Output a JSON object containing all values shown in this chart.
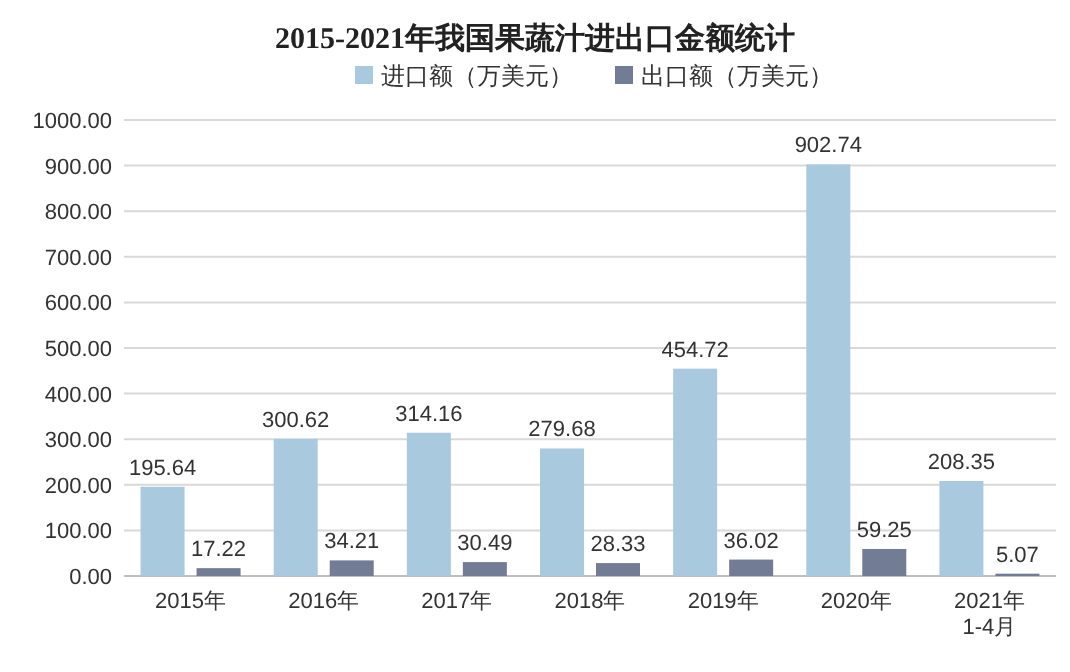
{
  "chart_data": {
    "type": "bar",
    "title": "2015-2021年我国果蔬汁进出口金额统计",
    "categories": [
      "2015年",
      "2016年",
      "2017年",
      "2018年",
      "2019年",
      "2020年",
      "2021年\n1-4月"
    ],
    "series": [
      {
        "name": "进口额（万美元）",
        "color": "#a9c9de",
        "values": [
          195.64,
          300.62,
          314.16,
          279.68,
          454.72,
          902.74,
          208.35
        ]
      },
      {
        "name": "出口额（万美元）",
        "color": "#737c95",
        "values": [
          17.22,
          34.21,
          30.49,
          28.33,
          36.02,
          59.25,
          5.07
        ]
      }
    ],
    "ylim": [
      0,
      1000
    ],
    "yticks": [
      {
        "value": 0,
        "label": "0.00"
      },
      {
        "value": 100,
        "label": "100.00"
      },
      {
        "value": 200,
        "label": "200.00"
      },
      {
        "value": 300,
        "label": "300.00"
      },
      {
        "value": 400,
        "label": "400.00"
      },
      {
        "value": 500,
        "label": "500.00"
      },
      {
        "value": 600,
        "label": "600.00"
      },
      {
        "value": 700,
        "label": "700.00"
      },
      {
        "value": 800,
        "label": "800.00"
      },
      {
        "value": 900,
        "label": "900.00"
      },
      {
        "value": 1000,
        "label": "1000.00"
      }
    ],
    "grid": "y",
    "legend": "top",
    "data_labels": true
  }
}
